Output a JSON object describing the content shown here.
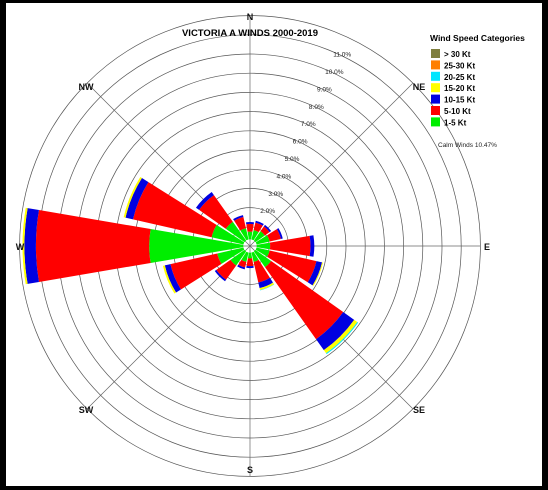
{
  "chart_data": {
    "type": "wind-rose",
    "title": "VICTORIA A WINDS 2000-2019",
    "directions": [
      "N",
      "NNE",
      "NE",
      "ENE",
      "E",
      "ESE",
      "SE",
      "SSE",
      "S",
      "SSW",
      "SW",
      "WSW",
      "W",
      "WNW",
      "NW",
      "NNW"
    ],
    "direction_labels": [
      "N",
      "NE",
      "E",
      "SE",
      "S",
      "SW",
      "W",
      "NW"
    ],
    "radial_ticks": [
      "2.0%",
      "3.0%",
      "4.0%",
      "5.0%",
      "6.0%",
      "7.0%",
      "8.0%",
      "9.0%",
      "10.0%",
      "11.0%"
    ],
    "radial_unit": "%",
    "rmax": 12,
    "legend": {
      "title": "Wind Speed Categories",
      "position": "top-right",
      "entries": [
        {
          "label": "> 30 Kt",
          "color": "#7f7f3f"
        },
        {
          "label": "25-30 Kt",
          "color": "#ff7f00"
        },
        {
          "label": "20-25 Kt",
          "color": "#00e5ff"
        },
        {
          "label": "15-20 Kt",
          "color": "#ffff00"
        },
        {
          "label": "10-15 Kt",
          "color": "#0000e0"
        },
        {
          "label": "5-10 Kt",
          "color": "#ff0000"
        },
        {
          "label": "1-5 Kt",
          "color": "#00ee00"
        }
      ]
    },
    "calm_text": "Calm Winds 10.47%",
    "stack_order": [
      "1-5 Kt",
      "5-10 Kt",
      "10-15 Kt",
      "15-20 Kt",
      "20-25 Kt",
      "25-30 Kt",
      "> 30 Kt"
    ],
    "series": [
      {
        "name": "1-5 Kt",
        "values": [
          0.4,
          0.5,
          0.6,
          0.7,
          0.7,
          0.7,
          1.0,
          0.5,
          0.3,
          0.5,
          0.9,
          1.4,
          4.9,
          1.7,
          1.2,
          0.6
        ]
      },
      {
        "name": "5-10 Kt",
        "values": [
          0.4,
          0.4,
          0.3,
          0.6,
          2.1,
          2.5,
          4.6,
          1.1,
          0.4,
          0.3,
          0.9,
          2.5,
          5.9,
          4.2,
          1.7,
          0.6
        ]
      },
      {
        "name": "10-15 Kt",
        "values": [
          0.1,
          0.1,
          0.1,
          0.1,
          0.2,
          0.3,
          0.7,
          0.3,
          0.1,
          0.1,
          0.1,
          0.3,
          0.6,
          0.4,
          0.2,
          0.1
        ]
      },
      {
        "name": "15-20 Kt",
        "values": [
          0.0,
          0.0,
          0.0,
          0.0,
          0.0,
          0.05,
          0.2,
          0.1,
          0.0,
          0.0,
          0.0,
          0.1,
          0.1,
          0.1,
          0.0,
          0.0
        ]
      },
      {
        "name": "20-25 Kt",
        "values": [
          0,
          0,
          0,
          0,
          0,
          0,
          0.05,
          0.02,
          0,
          0,
          0,
          0,
          0,
          0,
          0,
          0
        ]
      },
      {
        "name": "25-30 Kt",
        "values": [
          0,
          0,
          0,
          0,
          0,
          0,
          0,
          0,
          0,
          0,
          0,
          0,
          0,
          0,
          0,
          0
        ]
      },
      {
        "name": "> 30 Kt",
        "values": [
          0,
          0,
          0,
          0,
          0,
          0,
          0,
          0,
          0,
          0,
          0,
          0,
          0,
          0,
          0,
          0
        ]
      }
    ]
  }
}
